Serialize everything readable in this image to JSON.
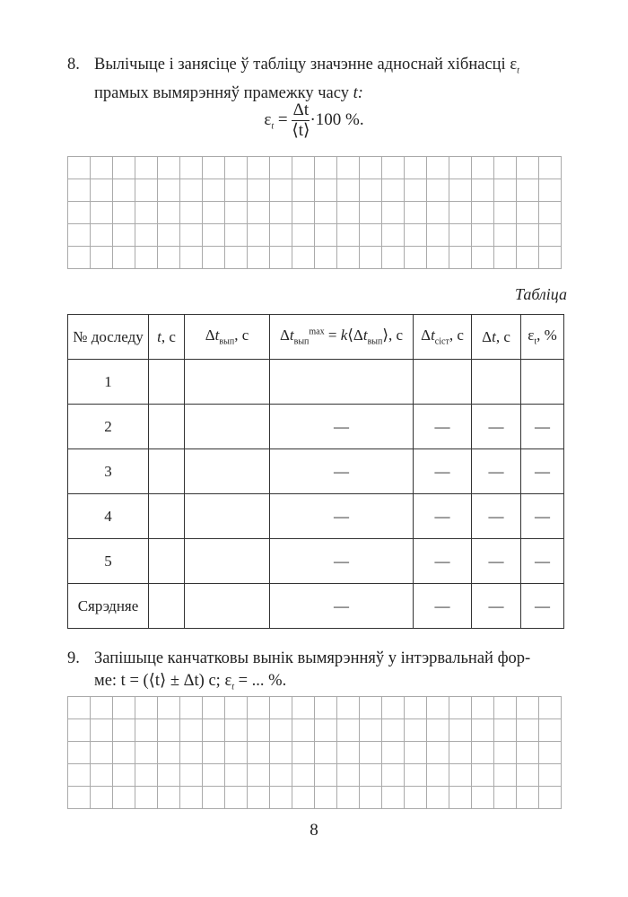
{
  "task8": {
    "number": "8.",
    "line1": "Вылічыце і занясіце ў табліцу значэнне адноснай хібнасці ε",
    "line1_sub": "t",
    "line2": "прамых вымярэнняў прамежку часу ",
    "line2_var": "t:"
  },
  "formula8": {
    "lhs": "ε",
    "lhs_sub": "t",
    "eq": " = ",
    "num": "Δt",
    "den": "⟨t⟩",
    "tail": "·100 %."
  },
  "table": {
    "caption": "Табліца",
    "headers": [
      "№ доследу",
      "t, с",
      "Δt_вып, с",
      "Δt_вып^max = k⟨Δt_вып⟩, с",
      "Δt_сіст, с",
      "Δt, с",
      "ε_t, %"
    ],
    "rows": [
      [
        "1",
        "",
        "",
        "",
        "",
        "",
        ""
      ],
      [
        "2",
        "",
        "",
        "—",
        "—",
        "—",
        "—"
      ],
      [
        "3",
        "",
        "",
        "—",
        "—",
        "—",
        "—"
      ],
      [
        "4",
        "",
        "",
        "—",
        "—",
        "—",
        "—"
      ],
      [
        "5",
        "",
        "",
        "—",
        "—",
        "—",
        "—"
      ],
      [
        "Сярэдняе",
        "",
        "",
        "—",
        "—",
        "—",
        "—"
      ]
    ]
  },
  "task9": {
    "number": "9.",
    "line1": "Запішыце канчатковы вынік вымярэнняў у інтэрвальнай фор-",
    "line2": "ме: t = (⟨t⟩ ± Δt) с; ε",
    "line2_sub": "t",
    "line2_end": " = ... %."
  },
  "page_number": "8"
}
